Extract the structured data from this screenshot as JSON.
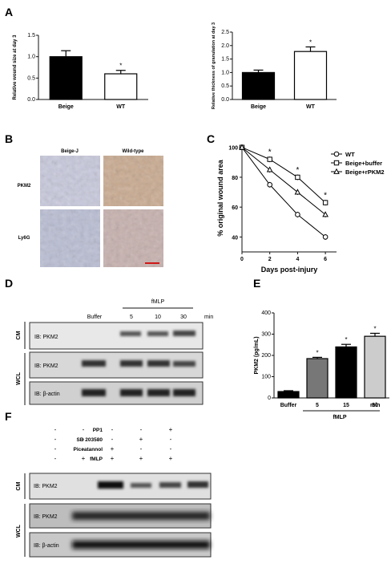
{
  "panels": {
    "A": "A",
    "B": "B",
    "C": "C",
    "D": "D",
    "E": "E",
    "F": "F"
  },
  "chart_data": [
    {
      "id": "A1",
      "type": "bar",
      "categories": [
        "Beige",
        "WT"
      ],
      "values": [
        1.0,
        0.6
      ],
      "errors": [
        0.14,
        0.08
      ],
      "colors": [
        "#000000",
        "#ffffff"
      ],
      "significance": [
        "",
        "*"
      ],
      "ylabel": "Relative wound size at day 3",
      "ylim": [
        0,
        1.5
      ],
      "yticks": [
        "0.0",
        "0.5",
        "1.0",
        "1.5"
      ]
    },
    {
      "id": "A2",
      "type": "bar",
      "categories": [
        "Beige",
        "WT"
      ],
      "values": [
        1.0,
        1.78
      ],
      "errors": [
        0.09,
        0.17
      ],
      "colors": [
        "#000000",
        "#ffffff"
      ],
      "significance": [
        "",
        "*"
      ],
      "ylabel": "Relative thickness of granulation at day 3",
      "ylim": [
        0,
        2.5
      ],
      "yticks": [
        "0.0",
        "0.5",
        "1.0",
        "1.5",
        "2.0",
        "2.5"
      ]
    },
    {
      "id": "C",
      "type": "line",
      "x": [
        0,
        2,
        4,
        6
      ],
      "xticks": [
        "0",
        "2",
        "4",
        "6"
      ],
      "yticks": [
        "40",
        "60",
        "80",
        "100"
      ],
      "xlim": [
        0,
        6.8
      ],
      "ylim": [
        30,
        102
      ],
      "xlabel": "Days post-injury",
      "ylabel": "% original wound area",
      "series": [
        {
          "name": "WT",
          "values": [
            100,
            75,
            55,
            40
          ],
          "marker": "circle"
        },
        {
          "name": "Beige+buffer",
          "values": [
            100,
            92,
            80,
            63
          ],
          "marker": "square"
        },
        {
          "name": "Beige+rPKM2",
          "values": [
            100,
            85,
            70,
            55
          ],
          "marker": "triangle"
        }
      ],
      "significance": [
        {
          "x": 2,
          "text": "*"
        },
        {
          "x": 4,
          "text": "*"
        },
        {
          "x": 6,
          "text": "*"
        }
      ],
      "legend": "top-right"
    },
    {
      "id": "E",
      "type": "bar",
      "categories": [
        "Buffer",
        "5",
        "15",
        "30"
      ],
      "values": [
        30,
        185,
        240,
        290
      ],
      "errors": [
        4,
        6,
        12,
        14
      ],
      "colors": [
        "#000000",
        "#777777",
        "#000000",
        "#cccccc"
      ],
      "significance": [
        "",
        "*",
        "*",
        "*"
      ],
      "ylabel": "PKM2 (pg/mL)",
      "ylim": [
        0,
        400
      ],
      "yticks": [
        "0",
        "100",
        "200",
        "300",
        "400"
      ],
      "unit": "min",
      "group_label": "fMLP"
    }
  ],
  "panelB": {
    "col1": "Beige-J",
    "col2": "Wild-type",
    "row1": "PKM2",
    "row2": "Ly6G"
  },
  "panelD": {
    "fmlp": "fMLP",
    "cols": [
      "Buffer",
      "5",
      "10",
      "30"
    ],
    "unit": "min",
    "side_cm": "CM",
    "side_wcl": "WCL",
    "blots": [
      "IB: PKM2",
      "IB: PKM2",
      "IB: β-actin"
    ]
  },
  "panelF": {
    "rows": [
      {
        "label": "PP1",
        "signs": [
          "-",
          "-",
          "-",
          "-",
          "+"
        ]
      },
      {
        "label": "SB 203580",
        "signs": [
          "-",
          "-",
          "-",
          "+",
          "-"
        ]
      },
      {
        "label": "Piceatannol",
        "signs": [
          "-",
          "-",
          "+",
          "-",
          "-"
        ]
      },
      {
        "label": "fMLP",
        "signs": [
          "-",
          "+",
          "+",
          "+",
          "+"
        ]
      }
    ],
    "side_cm": "CM",
    "side_wcl": "WCL",
    "blots": [
      "IB: PKM2",
      "IB: PKM2",
      "IB: β-actin"
    ]
  }
}
